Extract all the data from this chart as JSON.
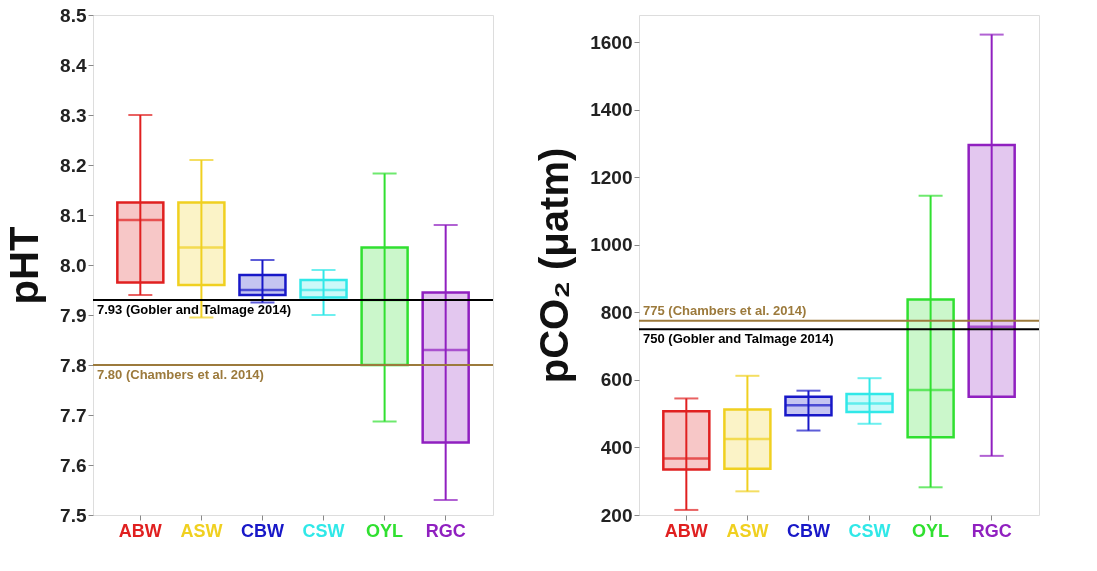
{
  "chart_data": [
    {
      "type": "box",
      "ylabel": "pHT",
      "categories": [
        "ABW",
        "ASW",
        "CBW",
        "CSW",
        "OYL",
        "RGC"
      ],
      "colors": [
        "#e02020",
        "#f0d020",
        "#1818c8",
        "#30e8e8",
        "#30e030",
        "#9020c0"
      ],
      "boxes": [
        {
          "low": 7.94,
          "q1": 7.965,
          "median": 8.09,
          "q3": 8.125,
          "high": 8.3
        },
        {
          "low": 7.895,
          "q1": 7.96,
          "median": 8.035,
          "q3": 8.125,
          "high": 8.21
        },
        {
          "low": 7.925,
          "q1": 7.94,
          "median": 7.95,
          "q3": 7.98,
          "high": 8.01
        },
        {
          "low": 7.9,
          "q1": 7.935,
          "median": 7.95,
          "q3": 7.97,
          "high": 7.99
        },
        {
          "low": 7.687,
          "q1": 7.8,
          "median": 7.93,
          "q3": 8.035,
          "high": 8.183
        },
        {
          "low": 7.53,
          "q1": 7.645,
          "median": 7.83,
          "q3": 7.945,
          "high": 8.08
        }
      ],
      "ylim": [
        7.5,
        8.5
      ],
      "yticks": [
        7.5,
        7.6,
        7.7,
        7.8,
        7.9,
        {
          "value": 8.0,
          "label": "8.0"
        },
        8.1,
        8.2,
        8.3,
        8.4,
        8.5
      ],
      "ref_lines": [
        {
          "axis": "y",
          "value": 7.93,
          "label": "7.93 (Gobler and Talmage 2014)",
          "color": "#000000"
        },
        {
          "axis": "y",
          "value": 7.8,
          "label": "7.80 (Chambers et al. 2014)",
          "color": "#9c7a3c"
        }
      ],
      "grid": false
    },
    {
      "type": "box",
      "ylabel": "pCO₂ (μatm)",
      "categories": [
        "ABW",
        "ASW",
        "CBW",
        "CSW",
        "OYL",
        "RGC"
      ],
      "colors": [
        "#e02020",
        "#f0d020",
        "#1818c8",
        "#30e8e8",
        "#30e030",
        "#9020c0"
      ],
      "boxes": [
        {
          "low": 215,
          "q1": 335,
          "median": 367,
          "q3": 507,
          "high": 545
        },
        {
          "low": 270,
          "q1": 337,
          "median": 425,
          "q3": 512,
          "high": 612
        },
        {
          "low": 450,
          "q1": 495,
          "median": 525,
          "q3": 550,
          "high": 568
        },
        {
          "low": 470,
          "q1": 505,
          "median": 530,
          "q3": 558,
          "high": 605
        },
        {
          "low": 282,
          "q1": 430,
          "median": 570,
          "q3": 838,
          "high": 1145
        },
        {
          "low": 375,
          "q1": 550,
          "median": 757,
          "q3": 1295,
          "high": 1622
        }
      ],
      "ylim": [
        200,
        1680
      ],
      "yticks": [
        200,
        400,
        600,
        800,
        1000,
        1200,
        1400,
        1600
      ],
      "ref_lines": [
        {
          "axis": "y",
          "value": 775,
          "label": "775 (Chambers et al. 2014)",
          "color": "#9c7a3c"
        },
        {
          "axis": "y",
          "value": 750,
          "label": "750 (Gobler and Talmage 2014)",
          "color": "#000000"
        }
      ],
      "grid": false
    }
  ]
}
